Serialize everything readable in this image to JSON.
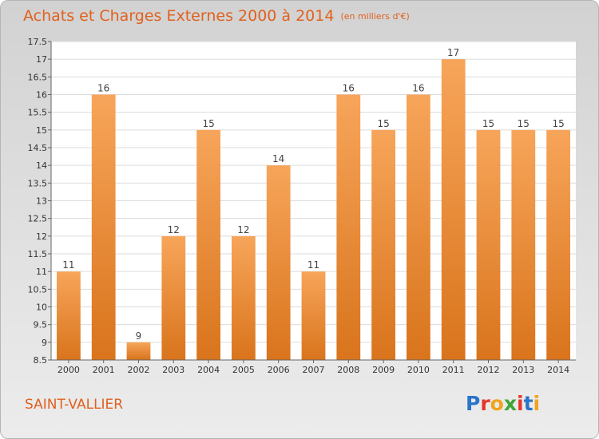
{
  "header": {
    "title": "Achats et Charges Externes 2000 à 2014",
    "subtitle": "(en milliers d'€)"
  },
  "footer": {
    "commune": "SAINT-VALLIER",
    "logo_letters": [
      "P",
      "r",
      "o",
      "x",
      "i",
      "t",
      "i"
    ],
    "logo_colors": [
      "#2a74c9",
      "#e5372b",
      "#f0a31b",
      "#3fa535",
      "#e5372b",
      "#2a74c9",
      "#f0a31b"
    ]
  },
  "chart_data": {
    "type": "bar",
    "categories": [
      "2000",
      "2001",
      "2002",
      "2003",
      "2004",
      "2005",
      "2006",
      "2007",
      "2008",
      "2009",
      "2010",
      "2011",
      "2012",
      "2013",
      "2014"
    ],
    "values": [
      11,
      16,
      9,
      12,
      15,
      12,
      14,
      11,
      16,
      15,
      16,
      17,
      15,
      15,
      15
    ],
    "data_labels": [
      "11",
      "16",
      "9",
      "12",
      "15",
      "12",
      "14",
      "11",
      "16",
      "15",
      "16",
      "17",
      "15",
      "15",
      "15"
    ],
    "ylim": [
      8.5,
      17.5
    ],
    "yticks": [
      8.5,
      9,
      9.5,
      10,
      10.5,
      11,
      11.5,
      12,
      12.5,
      13,
      13.5,
      14,
      14.5,
      15,
      15.5,
      16,
      16.5,
      17,
      17.5
    ],
    "ytick_labels": [
      "8.5",
      "9",
      "9.5",
      "10",
      "10.5",
      "11",
      "11.5",
      "12",
      "12.5",
      "13",
      "13.5",
      "14",
      "14.5",
      "15",
      "15.5",
      "16",
      "16.5",
      "17",
      "17.5"
    ],
    "grid": true,
    "bar_color_top": "#f7a55a",
    "bar_color_bottom": "#d9741c",
    "text_color": "#e0611e"
  }
}
